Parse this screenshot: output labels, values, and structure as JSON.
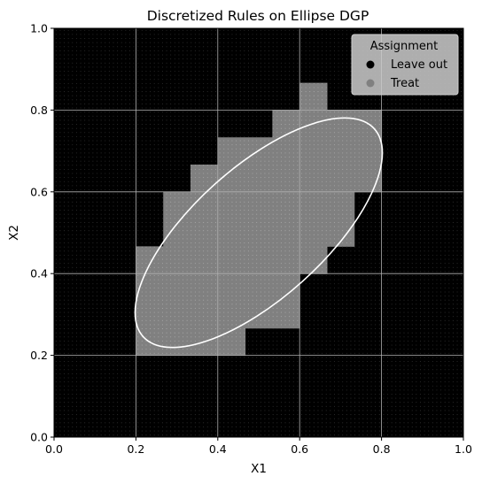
{
  "chart_data": {
    "type": "scatter",
    "title": "Discretized Rules on Ellipse DGP",
    "xlabel": "X1",
    "ylabel": "X2",
    "xlim": [
      0.0,
      1.0
    ],
    "ylim": [
      0.0,
      1.0
    ],
    "xticks": [
      "0.0",
      "0.2",
      "0.4",
      "0.6",
      "0.8",
      "1.0"
    ],
    "yticks": [
      "0.0",
      "0.2",
      "0.4",
      "0.6",
      "0.8",
      "1.0"
    ],
    "grid": true,
    "background_color": "#000000",
    "grid_color": "#b0b0b0",
    "legend": {
      "title": "Assignment",
      "placement": "top-right",
      "entries": [
        {
          "label": "Leave out",
          "color": "#000000"
        },
        {
          "label": "Treat",
          "color": "#808080"
        }
      ]
    },
    "series": [
      {
        "name": "Leave out",
        "color": "#000000"
      },
      {
        "name": "Treat",
        "color": "#808080"
      }
    ],
    "treat_cells_x_ranges_by_row": [
      {
        "y": [
          0.2,
          0.2667
        ],
        "x": [
          [
            0.2,
            0.4667
          ]
        ]
      },
      {
        "y": [
          0.2667,
          0.3333
        ],
        "x": [
          [
            0.2,
            0.6
          ]
        ]
      },
      {
        "y": [
          0.3333,
          0.4
        ],
        "x": [
          [
            0.2,
            0.6
          ]
        ]
      },
      {
        "y": [
          0.4,
          0.4667
        ],
        "x": [
          [
            0.2,
            0.6
          ],
          [
            0.6,
            0.6667
          ]
        ]
      },
      {
        "y": [
          0.4667,
          0.5333
        ],
        "x": [
          [
            0.2667,
            0.7333
          ]
        ]
      },
      {
        "y": [
          0.5333,
          0.6
        ],
        "x": [
          [
            0.2667,
            0.7333
          ]
        ]
      },
      {
        "y": [
          0.6,
          0.6667
        ],
        "x": [
          [
            0.3333,
            0.8
          ]
        ]
      },
      {
        "y": [
          0.6667,
          0.7333
        ],
        "x": [
          [
            0.4,
            0.8
          ]
        ]
      },
      {
        "y": [
          0.7333,
          0.8
        ],
        "x": [
          [
            0.5333,
            0.8
          ]
        ]
      },
      {
        "y": [
          0.8,
          0.8667
        ],
        "x": [
          [
            0.6,
            0.6667
          ]
        ]
      }
    ],
    "ellipse": {
      "center": [
        0.5,
        0.5
      ],
      "semi_major": 0.38,
      "semi_minor": 0.16,
      "angle_deg": 42,
      "color": "#ffffff"
    }
  }
}
